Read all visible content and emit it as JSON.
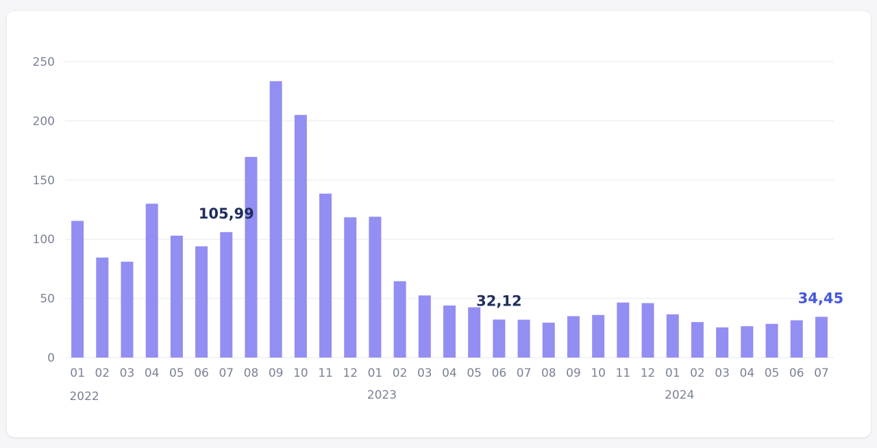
{
  "chart_data": {
    "type": "bar",
    "categories": [
      "01",
      "02",
      "03",
      "04",
      "05",
      "06",
      "07",
      "08",
      "09",
      "10",
      "11",
      "12",
      "01",
      "02",
      "03",
      "04",
      "05",
      "06",
      "07",
      "08",
      "09",
      "10",
      "11",
      "12",
      "01",
      "02",
      "03",
      "04",
      "05",
      "06",
      "07"
    ],
    "values": [
      115.5,
      84.5,
      81.0,
      130.0,
      103.0,
      94.0,
      105.99,
      169.5,
      233.5,
      205.0,
      138.5,
      118.5,
      119.0,
      64.5,
      52.5,
      44.0,
      42.5,
      32.12,
      32.0,
      29.5,
      35.0,
      36.0,
      46.5,
      46.0,
      36.5,
      30.0,
      25.5,
      26.5,
      28.5,
      31.5,
      34.45
    ],
    "years": [
      {
        "label": "2022",
        "start_index": 0
      },
      {
        "label": "2023",
        "start_index": 12
      },
      {
        "label": "2024",
        "start_index": 24
      }
    ],
    "ylim": [
      0,
      250
    ],
    "yticks": [
      0,
      50,
      100,
      150,
      200,
      250
    ],
    "grid": true,
    "bar_color": "#938ef2",
    "annotations": [
      {
        "index": 6,
        "text": "105,99",
        "style": "dark"
      },
      {
        "index": 17,
        "text": "32,12",
        "style": "dark"
      },
      {
        "index": 30,
        "text": "34,45",
        "style": "blue"
      }
    ],
    "colors": {
      "dark_label": "#1f2d5c",
      "blue_label": "#4457dc",
      "grid": "#e8e9ee"
    }
  }
}
